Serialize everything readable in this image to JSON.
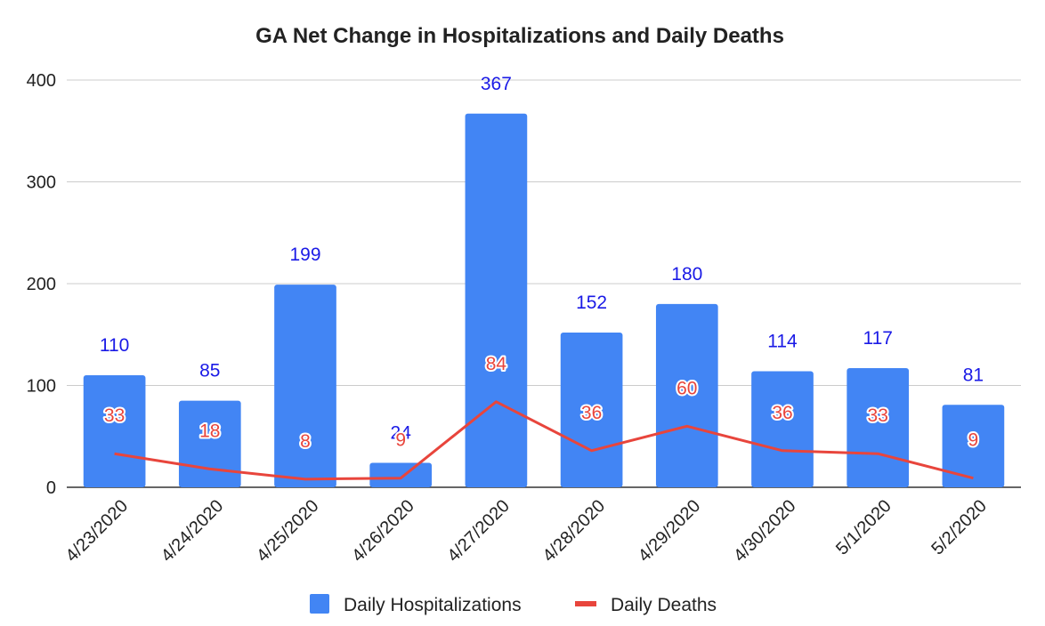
{
  "chart_data": {
    "type": "bar",
    "title": "GA Net Change in Hospitalizations and Daily Deaths",
    "categories": [
      "4/23/2020",
      "4/24/2020",
      "4/25/2020",
      "4/26/2020",
      "4/27/2020",
      "4/28/2020",
      "4/29/2020",
      "4/30/2020",
      "5/1/2020",
      "5/2/2020"
    ],
    "series": [
      {
        "name": "Daily Hospitalizations",
        "type": "bar",
        "color": "#4285f4",
        "label_color": "#1a1ae6",
        "values": [
          110,
          85,
          199,
          24,
          367,
          152,
          180,
          114,
          117,
          81
        ]
      },
      {
        "name": "Daily Deaths",
        "type": "line",
        "color": "#e8453c",
        "label_color": "#e8453c",
        "values": [
          33,
          18,
          8,
          9,
          84,
          36,
          60,
          36,
          33,
          9
        ]
      }
    ],
    "ylim": [
      0,
      400
    ],
    "yticks": [
      "0",
      "100",
      "200",
      "300",
      "400"
    ],
    "xlabel": "",
    "ylabel": "",
    "grid": true,
    "legend": "bottom"
  }
}
